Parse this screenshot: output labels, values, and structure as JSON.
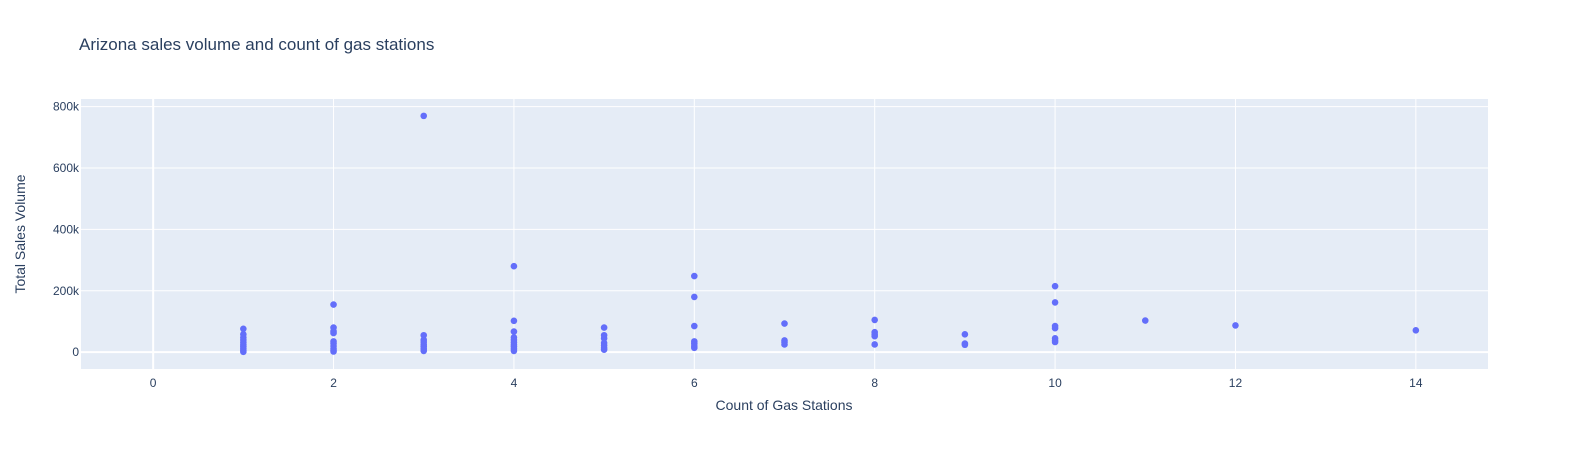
{
  "chart_data": {
    "type": "scatter",
    "title": "Arizona sales volume and count of gas stations",
    "xlabel": "Count of Gas Stations",
    "ylabel": "Total Sales Volume",
    "xlim": [
      -0.8,
      14.8
    ],
    "ylim": [
      -55000,
      825000
    ],
    "x_ticks": [
      0,
      2,
      4,
      6,
      8,
      10,
      12,
      14
    ],
    "x_tick_labels": [
      "0",
      "2",
      "4",
      "6",
      "8",
      "10",
      "12",
      "14"
    ],
    "y_ticks": [
      0,
      200000,
      400000,
      600000,
      800000
    ],
    "y_tick_labels": [
      "0",
      "200k",
      "400k",
      "600k",
      "800k"
    ],
    "grid": true,
    "legend": "none",
    "colors": {
      "plot_bg": "#e5ecf6",
      "marker": "#636efa",
      "text": "#2a3f5f"
    },
    "points": [
      {
        "x": 1,
        "y": 76000
      },
      {
        "x": 1,
        "y": 58000
      },
      {
        "x": 1,
        "y": 48000
      },
      {
        "x": 1,
        "y": 40000
      },
      {
        "x": 1,
        "y": 32000
      },
      {
        "x": 1,
        "y": 25000
      },
      {
        "x": 1,
        "y": 18000
      },
      {
        "x": 1,
        "y": 12000
      },
      {
        "x": 1,
        "y": 6000
      },
      {
        "x": 1,
        "y": 1000
      },
      {
        "x": 2,
        "y": 155000
      },
      {
        "x": 2,
        "y": 80000
      },
      {
        "x": 2,
        "y": 68000
      },
      {
        "x": 2,
        "y": 62000
      },
      {
        "x": 2,
        "y": 35000
      },
      {
        "x": 2,
        "y": 28000
      },
      {
        "x": 2,
        "y": 20000
      },
      {
        "x": 2,
        "y": 12000
      },
      {
        "x": 2,
        "y": 6000
      },
      {
        "x": 2,
        "y": 2000
      },
      {
        "x": 3,
        "y": 770000
      },
      {
        "x": 3,
        "y": 55000
      },
      {
        "x": 3,
        "y": 40000
      },
      {
        "x": 3,
        "y": 33000
      },
      {
        "x": 3,
        "y": 25000
      },
      {
        "x": 3,
        "y": 18000
      },
      {
        "x": 3,
        "y": 10000
      },
      {
        "x": 3,
        "y": 4000
      },
      {
        "x": 4,
        "y": 280000
      },
      {
        "x": 4,
        "y": 102000
      },
      {
        "x": 4,
        "y": 67000
      },
      {
        "x": 4,
        "y": 48000
      },
      {
        "x": 4,
        "y": 40000
      },
      {
        "x": 4,
        "y": 32000
      },
      {
        "x": 4,
        "y": 25000
      },
      {
        "x": 4,
        "y": 18000
      },
      {
        "x": 4,
        "y": 10000
      },
      {
        "x": 4,
        "y": 4000
      },
      {
        "x": 5,
        "y": 80000
      },
      {
        "x": 5,
        "y": 55000
      },
      {
        "x": 5,
        "y": 45000
      },
      {
        "x": 5,
        "y": 30000
      },
      {
        "x": 5,
        "y": 22000
      },
      {
        "x": 5,
        "y": 14000
      },
      {
        "x": 5,
        "y": 8000
      },
      {
        "x": 6,
        "y": 248000
      },
      {
        "x": 6,
        "y": 180000
      },
      {
        "x": 6,
        "y": 85000
      },
      {
        "x": 6,
        "y": 35000
      },
      {
        "x": 6,
        "y": 28000
      },
      {
        "x": 6,
        "y": 20000
      },
      {
        "x": 6,
        "y": 14000
      },
      {
        "x": 7,
        "y": 93000
      },
      {
        "x": 7,
        "y": 38000
      },
      {
        "x": 7,
        "y": 32000
      },
      {
        "x": 7,
        "y": 25000
      },
      {
        "x": 8,
        "y": 105000
      },
      {
        "x": 8,
        "y": 65000
      },
      {
        "x": 8,
        "y": 58000
      },
      {
        "x": 8,
        "y": 52000
      },
      {
        "x": 8,
        "y": 25000
      },
      {
        "x": 9,
        "y": 58000
      },
      {
        "x": 9,
        "y": 28000
      },
      {
        "x": 9,
        "y": 24000
      },
      {
        "x": 10,
        "y": 215000
      },
      {
        "x": 10,
        "y": 162000
      },
      {
        "x": 10,
        "y": 85000
      },
      {
        "x": 10,
        "y": 78000
      },
      {
        "x": 10,
        "y": 45000
      },
      {
        "x": 10,
        "y": 38000
      },
      {
        "x": 10,
        "y": 33000
      },
      {
        "x": 11,
        "y": 103000
      },
      {
        "x": 12,
        "y": 87000
      },
      {
        "x": 14,
        "y": 71000
      }
    ]
  }
}
